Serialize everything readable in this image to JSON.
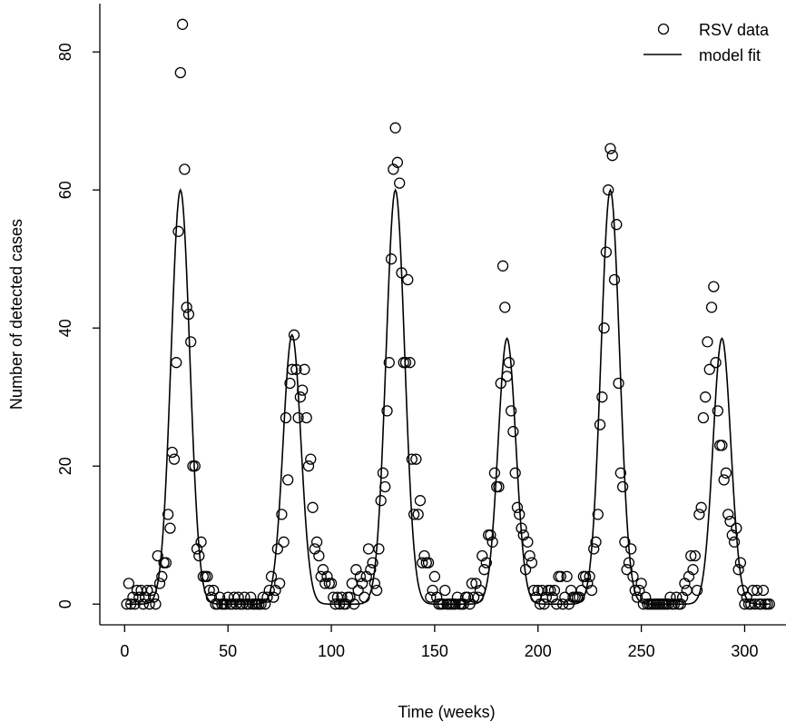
{
  "chart_data": {
    "type": "scatter",
    "xlabel": "Time (weeks)",
    "ylabel": "Number of detected cases",
    "xlim": [
      -12,
      320
    ],
    "ylim": [
      -3,
      87
    ],
    "xticks": [
      0,
      50,
      100,
      150,
      200,
      250,
      300
    ],
    "yticks": [
      0,
      20,
      40,
      60,
      80
    ],
    "grid": false,
    "legend_position": "top-right",
    "legend": [
      {
        "label": "RSV data",
        "marker": "open-circle"
      },
      {
        "label": "model fit",
        "marker": "line"
      }
    ],
    "series": [
      {
        "name": "RSV data",
        "style": "open-circle",
        "points": [
          [
            1,
            0
          ],
          [
            2,
            3
          ],
          [
            3,
            0
          ],
          [
            4,
            1
          ],
          [
            5,
            0
          ],
          [
            6,
            2
          ],
          [
            7,
            1
          ],
          [
            8,
            2
          ],
          [
            9,
            0
          ],
          [
            10,
            1
          ],
          [
            11,
            2
          ],
          [
            12,
            0
          ],
          [
            13,
            2
          ],
          [
            14,
            1
          ],
          [
            15,
            0
          ],
          [
            16,
            7
          ],
          [
            17,
            3
          ],
          [
            18,
            4
          ],
          [
            19,
            6
          ],
          [
            20,
            6
          ],
          [
            21,
            13
          ],
          [
            22,
            11
          ],
          [
            23,
            22
          ],
          [
            24,
            21
          ],
          [
            25,
            35
          ],
          [
            26,
            54
          ],
          [
            27,
            77
          ],
          [
            28,
            84
          ],
          [
            29,
            63
          ],
          [
            30,
            43
          ],
          [
            31,
            42
          ],
          [
            32,
            38
          ],
          [
            33,
            20
          ],
          [
            34,
            20
          ],
          [
            35,
            8
          ],
          [
            36,
            7
          ],
          [
            37,
            9
          ],
          [
            38,
            4
          ],
          [
            39,
            4
          ],
          [
            40,
            4
          ],
          [
            41,
            2
          ],
          [
            42,
            1
          ],
          [
            43,
            2
          ],
          [
            44,
            0
          ],
          [
            45,
            0
          ],
          [
            46,
            1
          ],
          [
            47,
            0
          ],
          [
            48,
            0
          ],
          [
            49,
            0
          ],
          [
            50,
            1
          ],
          [
            51,
            0
          ],
          [
            52,
            0
          ],
          [
            53,
            1
          ],
          [
            54,
            0
          ],
          [
            55,
            1
          ],
          [
            56,
            0
          ],
          [
            57,
            0
          ],
          [
            58,
            1
          ],
          [
            59,
            0
          ],
          [
            60,
            0
          ],
          [
            61,
            1
          ],
          [
            62,
            0
          ],
          [
            63,
            0
          ],
          [
            64,
            0
          ],
          [
            65,
            0
          ],
          [
            66,
            0
          ],
          [
            67,
            1
          ],
          [
            68,
            0
          ],
          [
            69,
            1
          ],
          [
            70,
            2
          ],
          [
            71,
            4
          ],
          [
            72,
            1
          ],
          [
            73,
            2
          ],
          [
            74,
            8
          ],
          [
            75,
            3
          ],
          [
            76,
            13
          ],
          [
            77,
            9
          ],
          [
            78,
            27
          ],
          [
            79,
            18
          ],
          [
            80,
            32
          ],
          [
            81,
            34
          ],
          [
            82,
            39
          ],
          [
            83,
            34
          ],
          [
            84,
            27
          ],
          [
            85,
            30
          ],
          [
            86,
            31
          ],
          [
            87,
            34
          ],
          [
            88,
            27
          ],
          [
            89,
            20
          ],
          [
            90,
            21
          ],
          [
            91,
            14
          ],
          [
            92,
            8
          ],
          [
            93,
            9
          ],
          [
            94,
            7
          ],
          [
            95,
            4
          ],
          [
            96,
            5
          ],
          [
            97,
            3
          ],
          [
            98,
            4
          ],
          [
            99,
            3
          ],
          [
            100,
            3
          ],
          [
            101,
            1
          ],
          [
            102,
            0
          ],
          [
            103,
            1
          ],
          [
            104,
            0
          ],
          [
            105,
            1
          ],
          [
            106,
            0
          ],
          [
            107,
            0
          ],
          [
            108,
            1
          ],
          [
            109,
            1
          ],
          [
            110,
            3
          ],
          [
            111,
            0
          ],
          [
            112,
            5
          ],
          [
            113,
            2
          ],
          [
            114,
            4
          ],
          [
            115,
            3
          ],
          [
            116,
            1
          ],
          [
            117,
            4
          ],
          [
            118,
            8
          ],
          [
            119,
            5
          ],
          [
            120,
            6
          ],
          [
            121,
            3
          ],
          [
            122,
            2
          ],
          [
            123,
            8
          ],
          [
            124,
            15
          ],
          [
            125,
            19
          ],
          [
            126,
            17
          ],
          [
            127,
            28
          ],
          [
            128,
            35
          ],
          [
            129,
            50
          ],
          [
            130,
            63
          ],
          [
            131,
            69
          ],
          [
            132,
            64
          ],
          [
            133,
            61
          ],
          [
            134,
            48
          ],
          [
            135,
            35
          ],
          [
            136,
            35
          ],
          [
            137,
            47
          ],
          [
            138,
            35
          ],
          [
            139,
            21
          ],
          [
            140,
            13
          ],
          [
            141,
            21
          ],
          [
            142,
            13
          ],
          [
            143,
            15
          ],
          [
            144,
            6
          ],
          [
            145,
            7
          ],
          [
            146,
            6
          ],
          [
            147,
            6
          ],
          [
            148,
            1
          ],
          [
            149,
            2
          ],
          [
            150,
            4
          ],
          [
            151,
            1
          ],
          [
            152,
            0
          ],
          [
            153,
            0
          ],
          [
            154,
            0
          ],
          [
            155,
            2
          ],
          [
            156,
            0
          ],
          [
            157,
            0
          ],
          [
            158,
            0
          ],
          [
            159,
            0
          ],
          [
            160,
            0
          ],
          [
            161,
            1
          ],
          [
            162,
            0
          ],
          [
            163,
            0
          ],
          [
            164,
            0
          ],
          [
            165,
            1
          ],
          [
            166,
            1
          ],
          [
            167,
            0
          ],
          [
            168,
            3
          ],
          [
            169,
            1
          ],
          [
            170,
            3
          ],
          [
            171,
            1
          ],
          [
            172,
            2
          ],
          [
            173,
            7
          ],
          [
            174,
            5
          ],
          [
            175,
            6
          ],
          [
            176,
            10
          ],
          [
            177,
            10
          ],
          [
            178,
            9
          ],
          [
            179,
            19
          ],
          [
            180,
            17
          ],
          [
            181,
            17
          ],
          [
            182,
            32
          ],
          [
            183,
            49
          ],
          [
            184,
            43
          ],
          [
            185,
            33
          ],
          [
            186,
            35
          ],
          [
            187,
            28
          ],
          [
            188,
            25
          ],
          [
            189,
            19
          ],
          [
            190,
            14
          ],
          [
            191,
            13
          ],
          [
            192,
            11
          ],
          [
            193,
            10
          ],
          [
            194,
            5
          ],
          [
            195,
            9
          ],
          [
            196,
            7
          ],
          [
            197,
            6
          ],
          [
            198,
            2
          ],
          [
            199,
            1
          ],
          [
            200,
            2
          ],
          [
            201,
            0
          ],
          [
            202,
            2
          ],
          [
            203,
            0
          ],
          [
            204,
            1
          ],
          [
            205,
            2
          ],
          [
            206,
            2
          ],
          [
            207,
            1
          ],
          [
            208,
            2
          ],
          [
            209,
            0
          ],
          [
            210,
            4
          ],
          [
            211,
            4
          ],
          [
            212,
            0
          ],
          [
            213,
            1
          ],
          [
            214,
            4
          ],
          [
            215,
            0
          ],
          [
            216,
            2
          ],
          [
            217,
            1
          ],
          [
            218,
            1
          ],
          [
            219,
            1
          ],
          [
            220,
            1
          ],
          [
            221,
            2
          ],
          [
            222,
            4
          ],
          [
            223,
            4
          ],
          [
            224,
            3
          ],
          [
            225,
            4
          ],
          [
            226,
            2
          ],
          [
            227,
            8
          ],
          [
            228,
            9
          ],
          [
            229,
            13
          ],
          [
            230,
            26
          ],
          [
            231,
            30
          ],
          [
            232,
            40
          ],
          [
            233,
            51
          ],
          [
            234,
            60
          ],
          [
            235,
            66
          ],
          [
            236,
            65
          ],
          [
            237,
            47
          ],
          [
            238,
            55
          ],
          [
            239,
            32
          ],
          [
            240,
            19
          ],
          [
            241,
            17
          ],
          [
            242,
            9
          ],
          [
            243,
            5
          ],
          [
            244,
            6
          ],
          [
            245,
            8
          ],
          [
            246,
            4
          ],
          [
            247,
            2
          ],
          [
            248,
            1
          ],
          [
            249,
            2
          ],
          [
            250,
            3
          ],
          [
            251,
            0
          ],
          [
            252,
            1
          ],
          [
            253,
            0
          ],
          [
            254,
            0
          ],
          [
            255,
            0
          ],
          [
            256,
            0
          ],
          [
            257,
            0
          ],
          [
            258,
            0
          ],
          [
            259,
            0
          ],
          [
            260,
            0
          ],
          [
            261,
            0
          ],
          [
            262,
            0
          ],
          [
            263,
            0
          ],
          [
            264,
            1
          ],
          [
            265,
            0
          ],
          [
            266,
            0
          ],
          [
            267,
            1
          ],
          [
            268,
            0
          ],
          [
            269,
            0
          ],
          [
            270,
            1
          ],
          [
            271,
            3
          ],
          [
            272,
            2
          ],
          [
            273,
            4
          ],
          [
            274,
            7
          ],
          [
            275,
            5
          ],
          [
            276,
            7
          ],
          [
            277,
            2
          ],
          [
            278,
            13
          ],
          [
            279,
            14
          ],
          [
            280,
            27
          ],
          [
            281,
            30
          ],
          [
            282,
            38
          ],
          [
            283,
            34
          ],
          [
            284,
            43
          ],
          [
            285,
            46
          ],
          [
            286,
            35
          ],
          [
            287,
            28
          ],
          [
            288,
            23
          ],
          [
            289,
            23
          ],
          [
            290,
            18
          ],
          [
            291,
            19
          ],
          [
            292,
            13
          ],
          [
            293,
            12
          ],
          [
            294,
            10
          ],
          [
            295,
            9
          ],
          [
            296,
            11
          ],
          [
            297,
            5
          ],
          [
            298,
            6
          ],
          [
            299,
            2
          ],
          [
            300,
            0
          ],
          [
            301,
            1
          ],
          [
            302,
            0
          ],
          [
            303,
            0
          ],
          [
            304,
            2
          ],
          [
            305,
            0
          ],
          [
            306,
            2
          ],
          [
            307,
            0
          ],
          [
            308,
            0
          ],
          [
            309,
            2
          ],
          [
            310,
            0
          ],
          [
            311,
            0
          ],
          [
            312,
            0
          ]
        ]
      },
      {
        "name": "model fit",
        "style": "line",
        "peaks": [
          {
            "t": 27,
            "height": 60,
            "width": 4.5
          },
          {
            "t": 81,
            "height": 39,
            "width": 4.3
          },
          {
            "t": 131,
            "height": 60,
            "width": 4.5
          },
          {
            "t": 185,
            "height": 38.5,
            "width": 4.3
          },
          {
            "t": 235,
            "height": 60,
            "width": 4.5
          },
          {
            "t": 289,
            "height": 38.5,
            "width": 4.3
          }
        ],
        "t_range": [
          1,
          312
        ]
      }
    ]
  }
}
